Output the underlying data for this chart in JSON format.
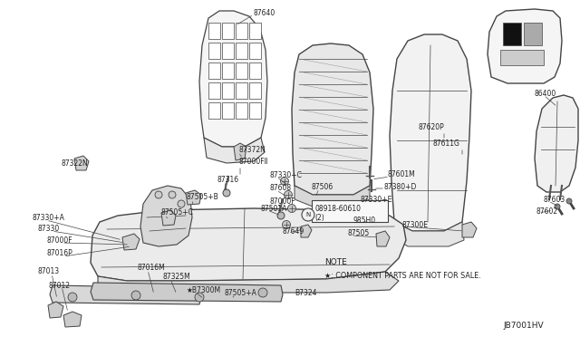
{
  "bg_color": "#ffffff",
  "line_color": "#444444",
  "text_color": "#222222",
  "note_text": "NOTE",
  "note_sub": "★: COMPONENT PARTS ARE NOT FOR SALE.",
  "diagram_id": "JB7001HV",
  "figsize": [
    6.4,
    3.72
  ],
  "dpi": 100
}
